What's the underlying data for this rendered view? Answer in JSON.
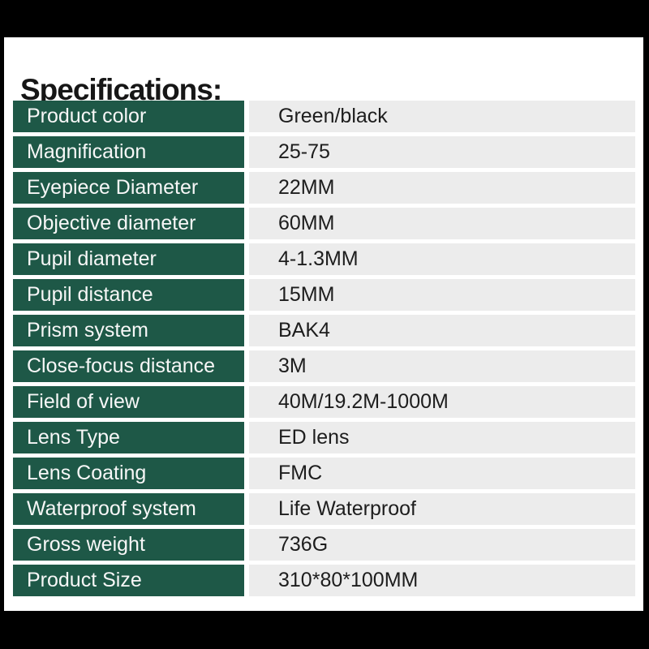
{
  "title": "Specifications:",
  "colors": {
    "frame": "#000000",
    "page_bg": "#ffffff",
    "label_cell_bg": "#1e5847",
    "value_cell_bg": "#ececec",
    "label_text": "#f7f7f7",
    "value_text": "#1d1d1d",
    "title_text": "#161616"
  },
  "table": {
    "rows": [
      {
        "label": "Product color",
        "value": "Green/black"
      },
      {
        "label": "Magnification",
        "value": "25-75"
      },
      {
        "label": "Eyepiece Diameter",
        "value": "22MM"
      },
      {
        "label": "Objective diameter",
        "value": "60MM"
      },
      {
        "label": "Pupil diameter",
        "value": "4-1.3MM"
      },
      {
        "label": "Pupil distance",
        "value": "15MM"
      },
      {
        "label": "Prism system",
        "value": "BAK4"
      },
      {
        "label": "Close-focus distance",
        "value": "3M"
      },
      {
        "label": "Field of view",
        "value": "40M/19.2M-1000M"
      },
      {
        "label": "Lens Type",
        "value": "ED lens"
      },
      {
        "label": "Lens Coating",
        "value": "FMC"
      },
      {
        "label": "Waterproof system",
        "value": "Life Waterproof"
      },
      {
        "label": "Gross weight",
        "value": "736G"
      },
      {
        "label": "Product Size",
        "value": "310*80*100MM"
      }
    ]
  }
}
